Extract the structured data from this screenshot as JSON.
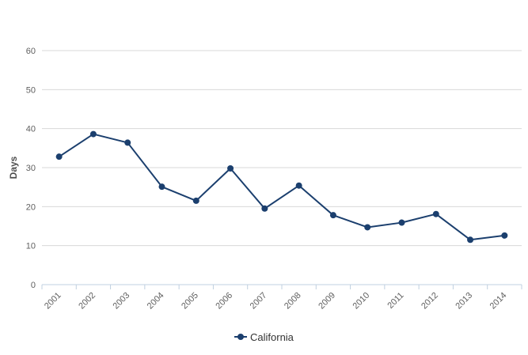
{
  "chart_data": {
    "type": "line",
    "x": [
      "2001",
      "2002",
      "2003",
      "2004",
      "2005",
      "2006",
      "2007",
      "2008",
      "2009",
      "2010",
      "2011",
      "2012",
      "2013",
      "2014"
    ],
    "series": [
      {
        "name": "California",
        "color": "#1b3f6e",
        "values": [
          32.8,
          38.6,
          36.4,
          25.1,
          21.5,
          29.8,
          19.5,
          25.4,
          17.8,
          14.7,
          15.9,
          18.1,
          11.5,
          12.6
        ]
      }
    ],
    "ylabel": "Days",
    "ylim": [
      0,
      60
    ],
    "yticks": [
      0,
      10,
      20,
      30,
      40,
      50,
      60
    ],
    "grid": true,
    "legend": "bottom-center"
  }
}
